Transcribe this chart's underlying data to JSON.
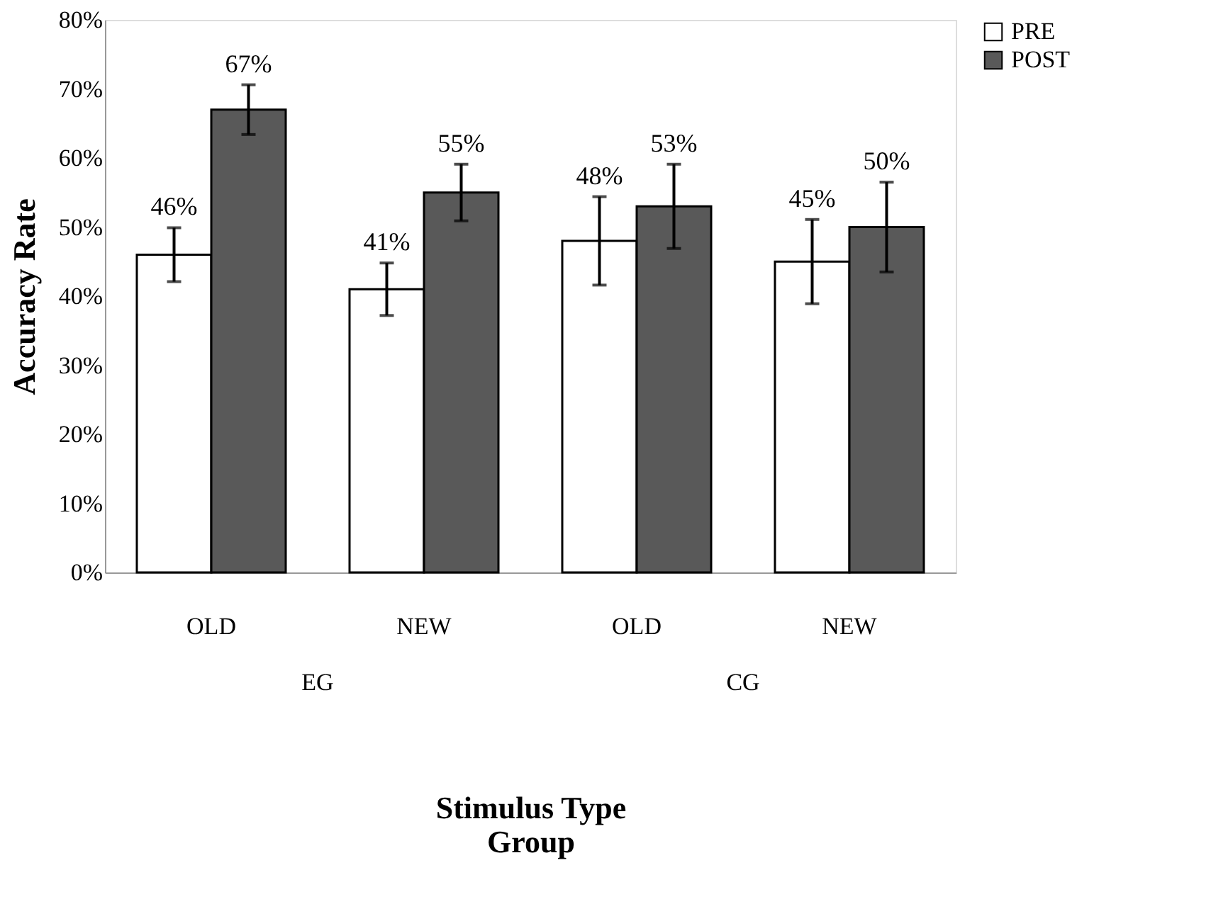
{
  "chart_data": {
    "type": "bar",
    "categories": [
      "OLD",
      "NEW",
      "OLD",
      "NEW"
    ],
    "series": [
      {
        "name": "PRE",
        "color": "#ffffff",
        "values": [
          46,
          41,
          48,
          45
        ],
        "errors": [
          3.9,
          3.8,
          6.4,
          6.1
        ],
        "value_labels": [
          "46%",
          "41%",
          "48%",
          "45%"
        ]
      },
      {
        "name": "POST",
        "color": "#595959",
        "values": [
          67,
          55,
          53,
          50
        ],
        "errors": [
          3.6,
          4.1,
          6.1,
          6.5
        ],
        "value_labels": [
          "67%",
          "55%",
          "53%",
          "50%"
        ]
      }
    ],
    "ylabel": "Accuracy Rate",
    "xlabel": "Stimulus Type\nGroup",
    "annotations": [
      "EG",
      "CG"
    ],
    "ylim": [
      0,
      80
    ],
    "yticks": [
      {
        "value": 0,
        "label": "0%"
      },
      {
        "value": 10,
        "label": "10%"
      },
      {
        "value": 20,
        "label": "20%"
      },
      {
        "value": 30,
        "label": "30%"
      },
      {
        "value": 40,
        "label": "40%"
      },
      {
        "value": 50,
        "label": "50%"
      },
      {
        "value": 60,
        "label": "60%"
      },
      {
        "value": 70,
        "label": "70%"
      },
      {
        "value": 80,
        "label": "80%"
      }
    ],
    "grid": false,
    "legend": "right"
  }
}
